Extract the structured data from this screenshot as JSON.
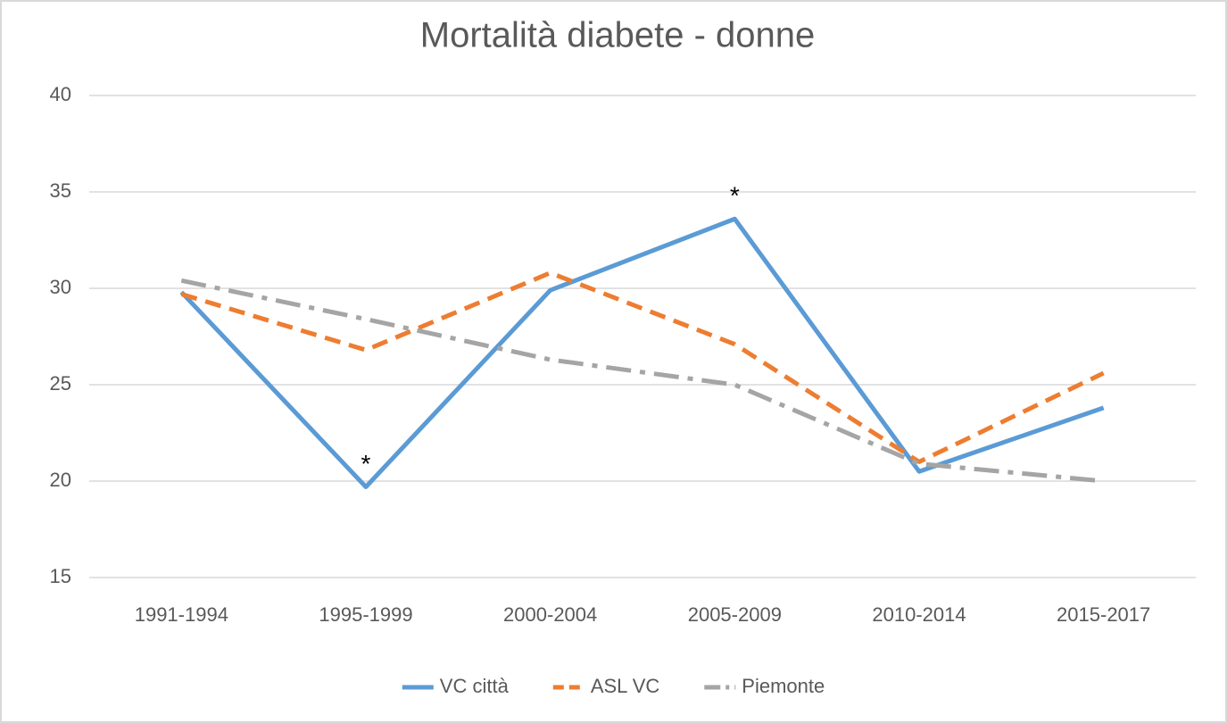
{
  "chart_data": {
    "type": "line",
    "title": "Mortalità diabete - donne",
    "categories": [
      "1991-1994",
      "1995-1999",
      "2000-2004",
      "2005-2009",
      "2010-2014",
      "2015-2017"
    ],
    "series": [
      {
        "name": "VC città",
        "color": "#5b9bd5",
        "dash": "solid",
        "values": [
          29.8,
          19.7,
          29.9,
          33.6,
          20.5,
          23.8
        ]
      },
      {
        "name": "ASL VC",
        "color": "#ed7d31",
        "dash": "dash",
        "values": [
          29.7,
          26.8,
          30.8,
          27.1,
          21.0,
          25.6
        ]
      },
      {
        "name": "Piemonte",
        "color": "#a5a5a5",
        "dash": "dashdot",
        "values": [
          30.4,
          28.4,
          26.3,
          25.0,
          20.9,
          20.0
        ]
      }
    ],
    "annotations": [
      {
        "text": "*",
        "category": "1995-1999"
      },
      {
        "text": "*",
        "category": "2005-2009"
      }
    ],
    "ylim": [
      15,
      40
    ],
    "yticks": [
      15,
      20,
      25,
      30,
      35,
      40
    ],
    "grid": true,
    "legend": "bottom"
  }
}
